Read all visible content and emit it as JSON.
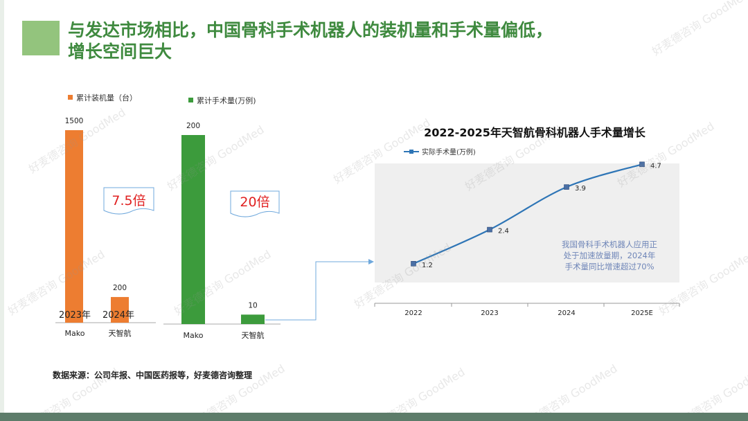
{
  "title": {
    "line1": "与发达市场相比，中国骨科手术机器人的装机量和手术量偏低，",
    "line2": "增长空间巨大"
  },
  "source": "数据来源：公司年报、中国医药报等，好麦德咨询整理",
  "watermark": "好麦德咨询 GoodMed",
  "colors": {
    "orange": "#ed7d31",
    "green": "#3c9b3c",
    "line": "#2e75b6",
    "title": "#3f8a3f",
    "callout_red": "#e02020"
  },
  "chart_data": [
    {
      "type": "bar",
      "legend": "累计装机量（台）",
      "categories": [
        "Mako",
        "天智航"
      ],
      "values": [
        1500,
        200
      ],
      "bar_annotations": [
        "2023年",
        "2024年"
      ],
      "ylim": [
        0,
        1500
      ],
      "callout": "7.5倍"
    },
    {
      "type": "bar",
      "legend": "累计手术量(万例)",
      "categories": [
        "Mako",
        "天智航"
      ],
      "values": [
        200,
        10
      ],
      "ylim": [
        0,
        200
      ],
      "callout": "20倍"
    },
    {
      "type": "line",
      "title": "2022-2025年天智航骨科机器人手术量增长",
      "legend": "实际手术量(万例)",
      "x": [
        "2022",
        "2023",
        "2024",
        "2025E"
      ],
      "values": [
        1.2,
        2.4,
        3.9,
        4.7
      ],
      "ylim": [
        0,
        5
      ],
      "grid": false,
      "annotation": {
        "line1": "我国骨科手术机器人应用正",
        "line2": "处于加速放量期，2024年",
        "line3": "手术量同比增速超过70%"
      }
    }
  ]
}
